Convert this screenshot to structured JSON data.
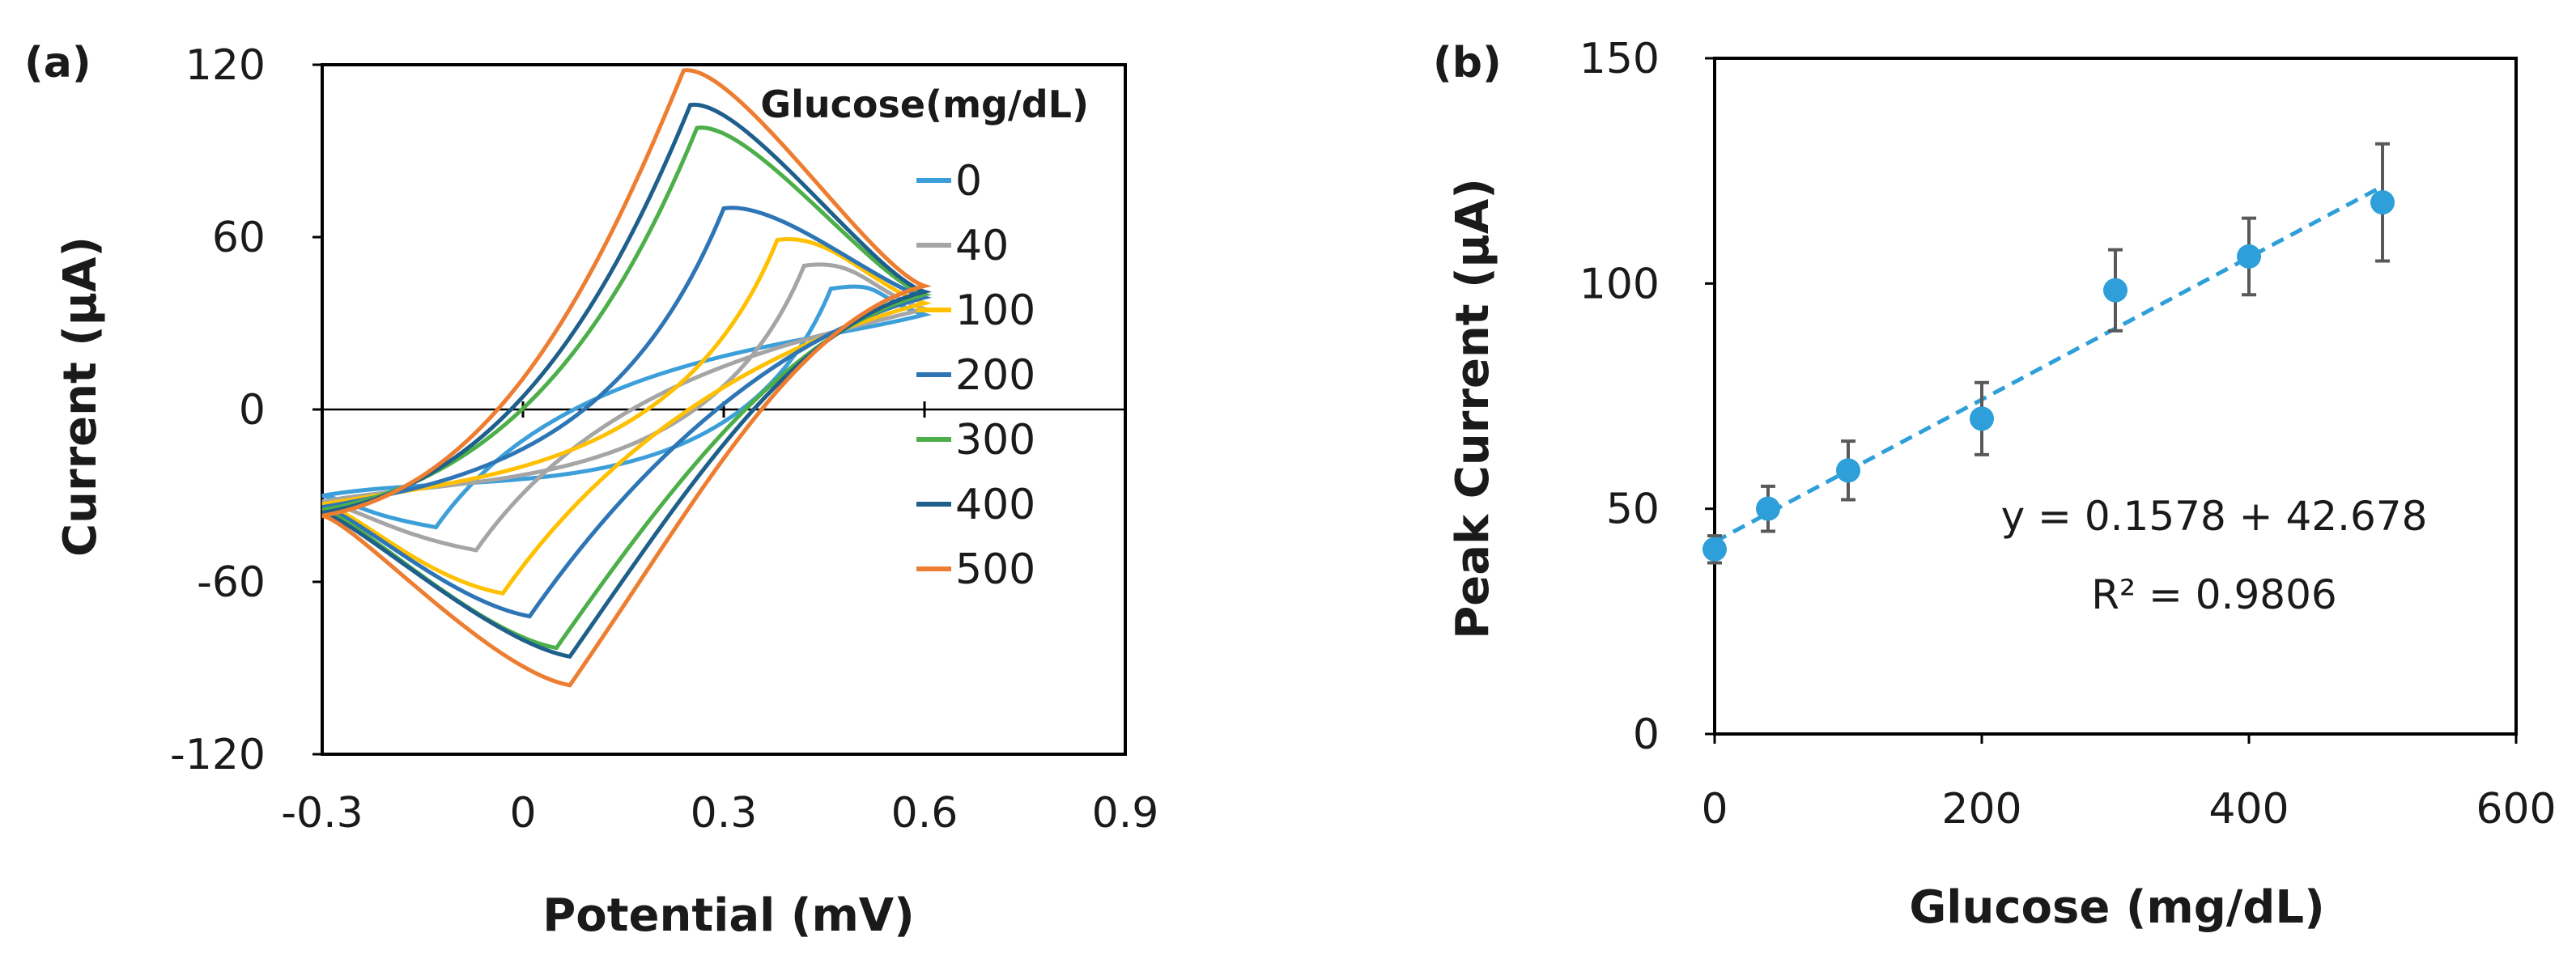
{
  "chart_data": [
    {
      "panel": "(a)",
      "type": "line",
      "title": "",
      "xlabel": "Potential (mV)",
      "ylabel": "Current (μA)",
      "xlim": [
        -0.3,
        0.9
      ],
      "ylim": [
        -120,
        120
      ],
      "xticks": [
        "-0.3",
        "0",
        "0.3",
        "0.6",
        "0.9"
      ],
      "yticks": [
        "-120",
        "-60",
        "0",
        "60",
        "120"
      ],
      "grid": false,
      "legend_title": "Glucose(mg/dL)",
      "legend_position": "top-right",
      "series": [
        {
          "name": "0",
          "color": "#3d9fd9",
          "anodic_peak": {
            "x": 0.46,
            "y": 42
          },
          "cathodic_peak": {
            "x": -0.13,
            "y": -41
          },
          "start": {
            "x": -0.3,
            "y": -30
          },
          "end": {
            "x": 0.6,
            "y": 33
          }
        },
        {
          "name": "40",
          "color": "#a5a5a5",
          "anodic_peak": {
            "x": 0.42,
            "y": 50
          },
          "cathodic_peak": {
            "x": -0.07,
            "y": -49
          },
          "start": {
            "x": -0.3,
            "y": -32
          },
          "end": {
            "x": 0.6,
            "y": 35
          }
        },
        {
          "name": "100",
          "color": "#ffc000",
          "anodic_peak": {
            "x": 0.38,
            "y": 59
          },
          "cathodic_peak": {
            "x": -0.03,
            "y": -64
          },
          "start": {
            "x": -0.3,
            "y": -33
          },
          "end": {
            "x": 0.6,
            "y": 37
          }
        },
        {
          "name": "200",
          "color": "#2e75b6",
          "anodic_peak": {
            "x": 0.3,
            "y": 70
          },
          "cathodic_peak": {
            "x": 0.01,
            "y": -72
          },
          "start": {
            "x": -0.3,
            "y": -34
          },
          "end": {
            "x": 0.6,
            "y": 39
          }
        },
        {
          "name": "300",
          "color": "#4daf4a",
          "anodic_peak": {
            "x": 0.26,
            "y": 98
          },
          "cathodic_peak": {
            "x": 0.05,
            "y": -83
          },
          "start": {
            "x": -0.3,
            "y": -35
          },
          "end": {
            "x": 0.6,
            "y": 40
          }
        },
        {
          "name": "400",
          "color": "#1f5f8b",
          "anodic_peak": {
            "x": 0.25,
            "y": 106
          },
          "cathodic_peak": {
            "x": 0.07,
            "y": -86
          },
          "start": {
            "x": -0.3,
            "y": -36
          },
          "end": {
            "x": 0.6,
            "y": 41
          }
        },
        {
          "name": "500",
          "color": "#ed7d31",
          "anodic_peak": {
            "x": 0.24,
            "y": 118
          },
          "cathodic_peak": {
            "x": 0.07,
            "y": -96
          },
          "start": {
            "x": -0.3,
            "y": -37
          },
          "end": {
            "x": 0.6,
            "y": 43
          }
        }
      ]
    },
    {
      "panel": "(b)",
      "type": "scatter",
      "title": "",
      "xlabel": "Glucose (mg/dL)",
      "ylabel": "Peak Current (μA)",
      "xlim": [
        0,
        600
      ],
      "ylim": [
        0,
        150
      ],
      "xticks": [
        "0",
        "200",
        "400",
        "600"
      ],
      "yticks": [
        "0",
        "50",
        "100",
        "150"
      ],
      "grid": false,
      "point_color": "#2e9fd8",
      "errorbar_color": "#595959",
      "series": [
        {
          "name": "Peak Current",
          "x": [
            0,
            40,
            100,
            200,
            300,
            400,
            500
          ],
          "y": [
            41,
            50,
            58.5,
            70,
            98.5,
            106,
            118
          ],
          "error": [
            3,
            5,
            6.5,
            8,
            9,
            8.5,
            13
          ]
        }
      ],
      "trendline": {
        "type": "linear",
        "slope": 0.1578,
        "intercept": 42.678,
        "style": "dashed",
        "color": "#2e9fd8"
      },
      "equation": "y = 0.1578 + 42.678",
      "r_squared": "R² = 0.9806"
    }
  ]
}
